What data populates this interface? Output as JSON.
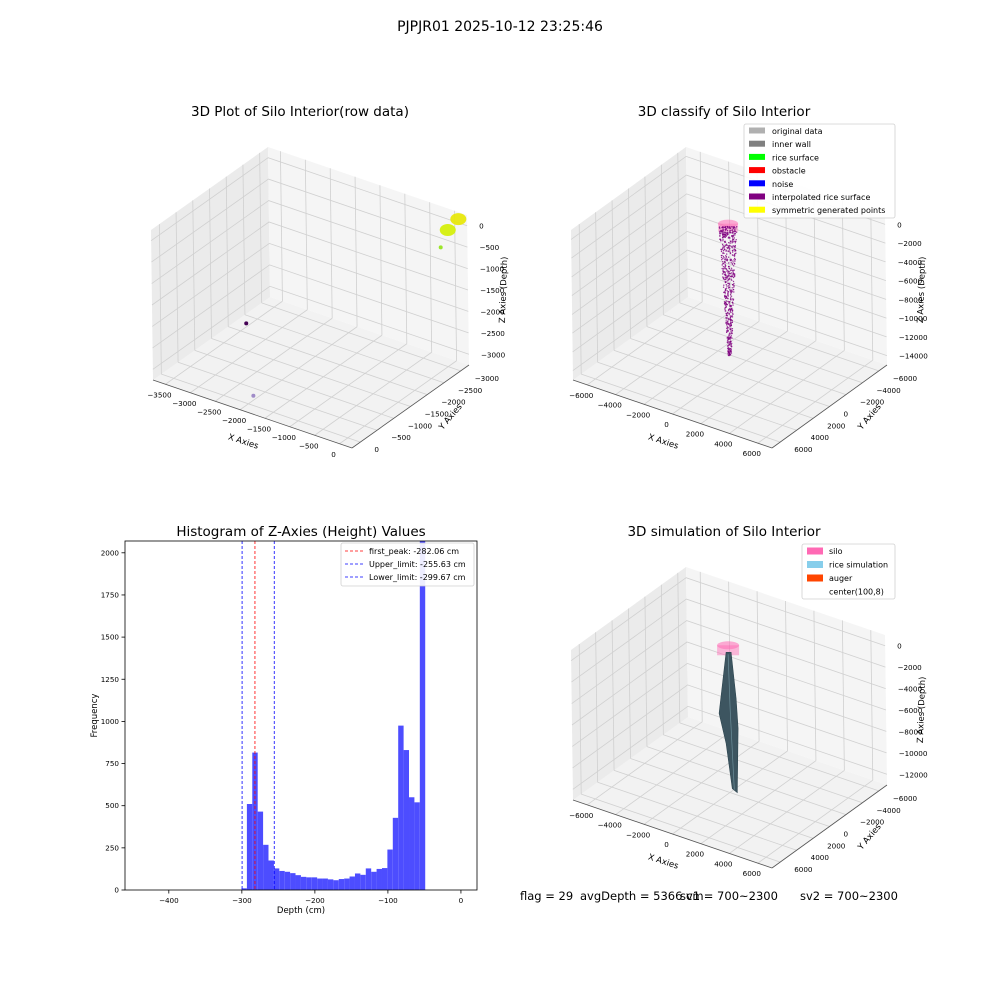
{
  "figure_title": "PJPJR01 2025-10-12 23:25:46",
  "footer": {
    "flag": "flag = 29",
    "avg_depth": "avgDepth = 5366 cm",
    "sv1": "sv1 = 700~2300",
    "sv2": "sv2 = 700~2300"
  },
  "colors": {
    "hist_bar": "#4d4dff",
    "first_peak": "#ff0000",
    "limit": "#0000ff",
    "pane": "#f2f2f2",
    "grid": "#d0d0d0",
    "silo": "#ff69b4",
    "rice_sim": "#87ceeb",
    "auger": "#ff4500",
    "rice_surface_dark": "#3d5560"
  },
  "chart_data": [
    {
      "id": "raw",
      "type": "scatter",
      "projection": "3d",
      "title": "3D Plot of Silo Interior(row data)",
      "xlabel": "X Axies",
      "ylabel": "Y Axies",
      "zlabel": "Z Axies (Depth)",
      "x_ticks": [
        "−3500",
        "−3000",
        "−2500",
        "−2000",
        "−1500",
        "−1000",
        "−500",
        "0"
      ],
      "y_ticks": [
        "0",
        "−500",
        "−1000",
        "−1500",
        "−2000",
        "−2500",
        "−3000"
      ],
      "z_ticks": [
        "0",
        "−500",
        "−1000",
        "−1500",
        "−2000",
        "−2500",
        "−3000"
      ],
      "xlim": [
        -3500,
        0
      ],
      "ylim": [
        -3000,
        0
      ],
      "zlim": [
        -3100,
        0
      ],
      "points": [
        {
          "x": -50,
          "y": -150,
          "z": -20,
          "color": "#e8e800",
          "size": "cluster"
        },
        {
          "x": -100,
          "y": -350,
          "z": -150,
          "color": "#d4f000",
          "size": "cluster"
        },
        {
          "x": -180,
          "y": -420,
          "z": -500,
          "color": "#9be52a",
          "size": "point"
        },
        {
          "x": -1800,
          "y": -2900,
          "z": -2800,
          "color": "#a08cc8",
          "size": "point"
        },
        {
          "x": -3300,
          "y": -900,
          "z": -3050,
          "color": "#440154",
          "size": "point"
        }
      ]
    },
    {
      "id": "classify",
      "type": "scatter",
      "projection": "3d",
      "title": "3D classify of Silo Interior",
      "xlabel": "X Axies",
      "ylabel": "Y Axies",
      "zlabel": "Z Axies (Depth)",
      "x_ticks": [
        "−6000",
        "−4000",
        "−2000",
        "0",
        "2000",
        "4000",
        "6000"
      ],
      "y_ticks": [
        "6000",
        "4000",
        "2000",
        "0",
        "−2000",
        "−4000",
        "−6000"
      ],
      "z_ticks": [
        "0",
        "−2000",
        "−4000",
        "−6000",
        "−8000",
        "−10000",
        "−12000",
        "−14000"
      ],
      "xlim": [
        -7000,
        7000
      ],
      "ylim": [
        -7000,
        7000
      ],
      "zlim": [
        -14500,
        0
      ],
      "legend": [
        {
          "label": "original data",
          "color": "#b0b0b0"
        },
        {
          "label": "inner wall",
          "color": "#808080"
        },
        {
          "label": "rice surface",
          "color": "#00ff00"
        },
        {
          "label": "obstacle",
          "color": "#ff0000"
        },
        {
          "label": "noise",
          "color": "#0000ff"
        },
        {
          "label": "interpolated rice surface",
          "color": "#800080"
        },
        {
          "label": "symmetric generated points",
          "color": "#ffff00"
        }
      ],
      "cone": {
        "z_top": -400,
        "z_bottom": -13000,
        "radius_top": 800,
        "radius_bottom": 100,
        "point_count": 620
      }
    },
    {
      "id": "histogram",
      "type": "bar",
      "title": "Histogram of Z-Axies (Height) Values",
      "xlabel": "Depth (cm)",
      "ylabel": "Frequency",
      "xlim": [
        -460,
        22
      ],
      "ylim": [
        0,
        2070
      ],
      "x_ticks": [
        -400,
        -300,
        -200,
        -100,
        0
      ],
      "x_tick_labels": [
        "−400",
        "−300",
        "−200",
        "−100",
        "0"
      ],
      "y_ticks": [
        0,
        250,
        500,
        750,
        1000,
        1250,
        1500,
        1750,
        2000
      ],
      "bin_start": -300.5,
      "bin_width": 7.4,
      "values": [
        10,
        510,
        815,
        465,
        268,
        175,
        128,
        113,
        108,
        100,
        88,
        78,
        75,
        75,
        68,
        68,
        63,
        58,
        65,
        68,
        80,
        98,
        90,
        128,
        108,
        125,
        130,
        240,
        428,
        975,
        830,
        550,
        520,
        2070
      ],
      "first_peak": {
        "value": -282.06,
        "label": "first_peak: -282.06 cm"
      },
      "upper_limit": {
        "value": -255.63,
        "label": "Upper_limit: -255.63 cm"
      },
      "lower_limit": {
        "value": -299.67,
        "label": "Lower_limit: -299.67 cm"
      }
    },
    {
      "id": "simulation",
      "type": "area",
      "projection": "3d",
      "title": "3D simulation of Silo Interior",
      "xlabel": "X Axies",
      "ylabel": "Y Axies",
      "zlabel": "Z Axies (Depth)",
      "x_ticks": [
        "−6000",
        "−4000",
        "−2000",
        "0",
        "2000",
        "4000",
        "6000"
      ],
      "y_ticks": [
        "6000",
        "4000",
        "2000",
        "0",
        "−2000",
        "−4000",
        "−6000"
      ],
      "z_ticks": [
        "0",
        "−2000",
        "−4000",
        "−6000",
        "−8000",
        "−10000",
        "−12000"
      ],
      "xlim": [
        -7000,
        7000
      ],
      "ylim": [
        -7000,
        7000
      ],
      "zlim": [
        -13000,
        0
      ],
      "legend": [
        {
          "label": "silo",
          "color": "#ff69b4"
        },
        {
          "label": "rice simulation",
          "color": "#87ceeb"
        },
        {
          "label": "auger",
          "color": "#ff4500"
        },
        {
          "label": "center(100,8)",
          "color": "#ffffff"
        }
      ]
    }
  ]
}
